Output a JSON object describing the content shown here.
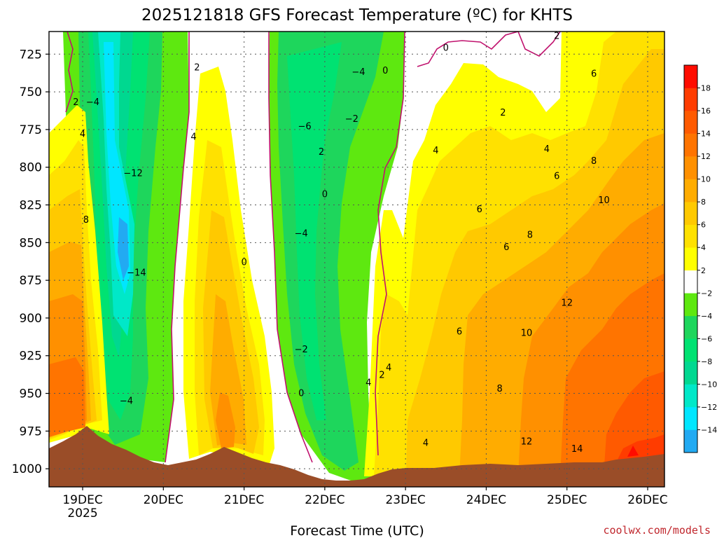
{
  "chart_data": {
    "type": "heatmap",
    "title": "2025121818 GFS Forecast Temperature (ºC) for KHTS",
    "xlabel": "Forecast Time (UTC)",
    "ylabel": "",
    "credit": "coolwx.com/models",
    "x_ticks": [
      "19DEC",
      "20DEC",
      "21DEC",
      "22DEC",
      "23DEC",
      "24DEC",
      "25DEC",
      "26DEC"
    ],
    "x_tick_sub": "2025",
    "y_ticks": [
      725,
      750,
      775,
      800,
      825,
      850,
      875,
      900,
      925,
      950,
      975,
      1000
    ],
    "ylim": [
      1012,
      710
    ],
    "xlim_hours": [
      -10,
      173
    ],
    "grid": true,
    "colorbar": {
      "levels": [
        -16,
        -14,
        -12,
        -10,
        -8,
        -6,
        -4,
        -2,
        2,
        4,
        6,
        8,
        10,
        12,
        14,
        16,
        18,
        20
      ],
      "labels": [
        "−14",
        "−12",
        "−10",
        "−8",
        "−6",
        "−4",
        "−2",
        "2",
        "4",
        "6",
        "8",
        "10",
        "12",
        "14",
        "16",
        "18"
      ],
      "colors": [
        "#22aaf2",
        "#00e6ff",
        "#00e8c8",
        "#00d890",
        "#00e272",
        "#1ed65c",
        "#5ee810",
        "#ffffff",
        "#ffff00",
        "#ffe100",
        "#ffc900",
        "#ffac00",
        "#ff9000",
        "#ff7400",
        "#ff5a00",
        "#ff3c00",
        "#ff0c00"
      ]
    },
    "contour_labels": [
      {
        "text": "2",
        "t": -2,
        "p": 757
      },
      {
        "text": "−4",
        "t": 3,
        "p": 757
      },
      {
        "text": "4",
        "t": 0,
        "p": 778
      },
      {
        "text": "8",
        "t": 1,
        "p": 835
      },
      {
        "text": "−12",
        "t": 15,
        "p": 804
      },
      {
        "text": "−14",
        "t": 16,
        "p": 870
      },
      {
        "text": "−4",
        "t": 13,
        "p": 955
      },
      {
        "text": "2",
        "t": 34,
        "p": 734
      },
      {
        "text": "4",
        "t": 33,
        "p": 780
      },
      {
        "text": "0",
        "t": 48,
        "p": 863
      },
      {
        "text": "−6",
        "t": 66,
        "p": 773
      },
      {
        "text": "−4",
        "t": 65,
        "p": 844
      },
      {
        "text": "−2",
        "t": 65,
        "p": 921
      },
      {
        "text": "0",
        "t": 65,
        "p": 950
      },
      {
        "text": "−4",
        "t": 82,
        "p": 737
      },
      {
        "text": "−2",
        "t": 80,
        "p": 768
      },
      {
        "text": "0",
        "t": 90,
        "p": 736
      },
      {
        "text": "0",
        "t": 72,
        "p": 818
      },
      {
        "text": "2",
        "t": 71,
        "p": 790
      },
      {
        "text": "0",
        "t": 108,
        "p": 721
      },
      {
        "text": "2",
        "t": 125,
        "p": 764
      },
      {
        "text": "2",
        "t": 141,
        "p": 713
      },
      {
        "text": "6",
        "t": 152,
        "p": 738
      },
      {
        "text": "4",
        "t": 105,
        "p": 789
      },
      {
        "text": "4",
        "t": 138,
        "p": 788
      },
      {
        "text": "6",
        "t": 118,
        "p": 828
      },
      {
        "text": "6",
        "t": 126,
        "p": 853
      },
      {
        "text": "6",
        "t": 141,
        "p": 806
      },
      {
        "text": "8",
        "t": 152,
        "p": 796
      },
      {
        "text": "8",
        "t": 133,
        "p": 845
      },
      {
        "text": "10",
        "t": 155,
        "p": 822
      },
      {
        "text": "6",
        "t": 112,
        "p": 909
      },
      {
        "text": "12",
        "t": 144,
        "p": 890
      },
      {
        "text": "10",
        "t": 132,
        "p": 910
      },
      {
        "text": "8",
        "t": 124,
        "p": 947
      },
      {
        "text": "4",
        "t": 91,
        "p": 933
      },
      {
        "text": "2",
        "t": 89,
        "p": 938
      },
      {
        "text": "4",
        "t": 85,
        "p": 943
      },
      {
        "text": "4",
        "t": 102,
        "p": 983
      },
      {
        "text": "12",
        "t": 132,
        "p": 982
      },
      {
        "text": "14",
        "t": 147,
        "p": 987
      }
    ]
  }
}
